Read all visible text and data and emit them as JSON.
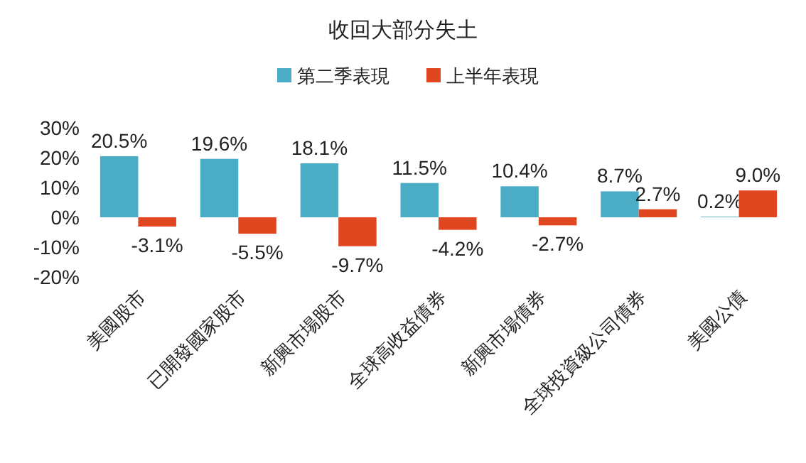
{
  "chart_data": {
    "type": "bar",
    "title": "收回大部分失土",
    "categories": [
      "美國股市",
      "已開發國家股市",
      "新興市場股市",
      "全球高收益債券",
      "新興市場債券",
      "全球投資級公司債券",
      "美國公債"
    ],
    "series": [
      {
        "name": "第二季表現",
        "color": "#4bacc6",
        "values": [
          20.5,
          19.6,
          18.1,
          11.5,
          10.4,
          8.7,
          0.2
        ],
        "value_labels": [
          "20.5%",
          "19.6%",
          "18.1%",
          "11.5%",
          "10.4%",
          "8.7%",
          "0.2%"
        ]
      },
      {
        "name": "上半年表現",
        "color": "#e0461f",
        "values": [
          -3.1,
          -5.5,
          -9.7,
          -4.2,
          -2.7,
          2.7,
          9.0
        ],
        "value_labels": [
          "-3.1%",
          "-5.5%",
          "-9.7%",
          "-4.2%",
          "-2.7%",
          "2.7%",
          "9.0%"
        ]
      }
    ],
    "ylim": [
      -20,
      30
    ],
    "yticks": [
      {
        "value": 30,
        "label": "30%"
      },
      {
        "value": 20,
        "label": "20%"
      },
      {
        "value": 10,
        "label": "10%"
      },
      {
        "value": 0,
        "label": "0%"
      },
      {
        "value": -10,
        "label": "-10%"
      },
      {
        "value": -20,
        "label": "-20%"
      }
    ],
    "legend": "top"
  }
}
